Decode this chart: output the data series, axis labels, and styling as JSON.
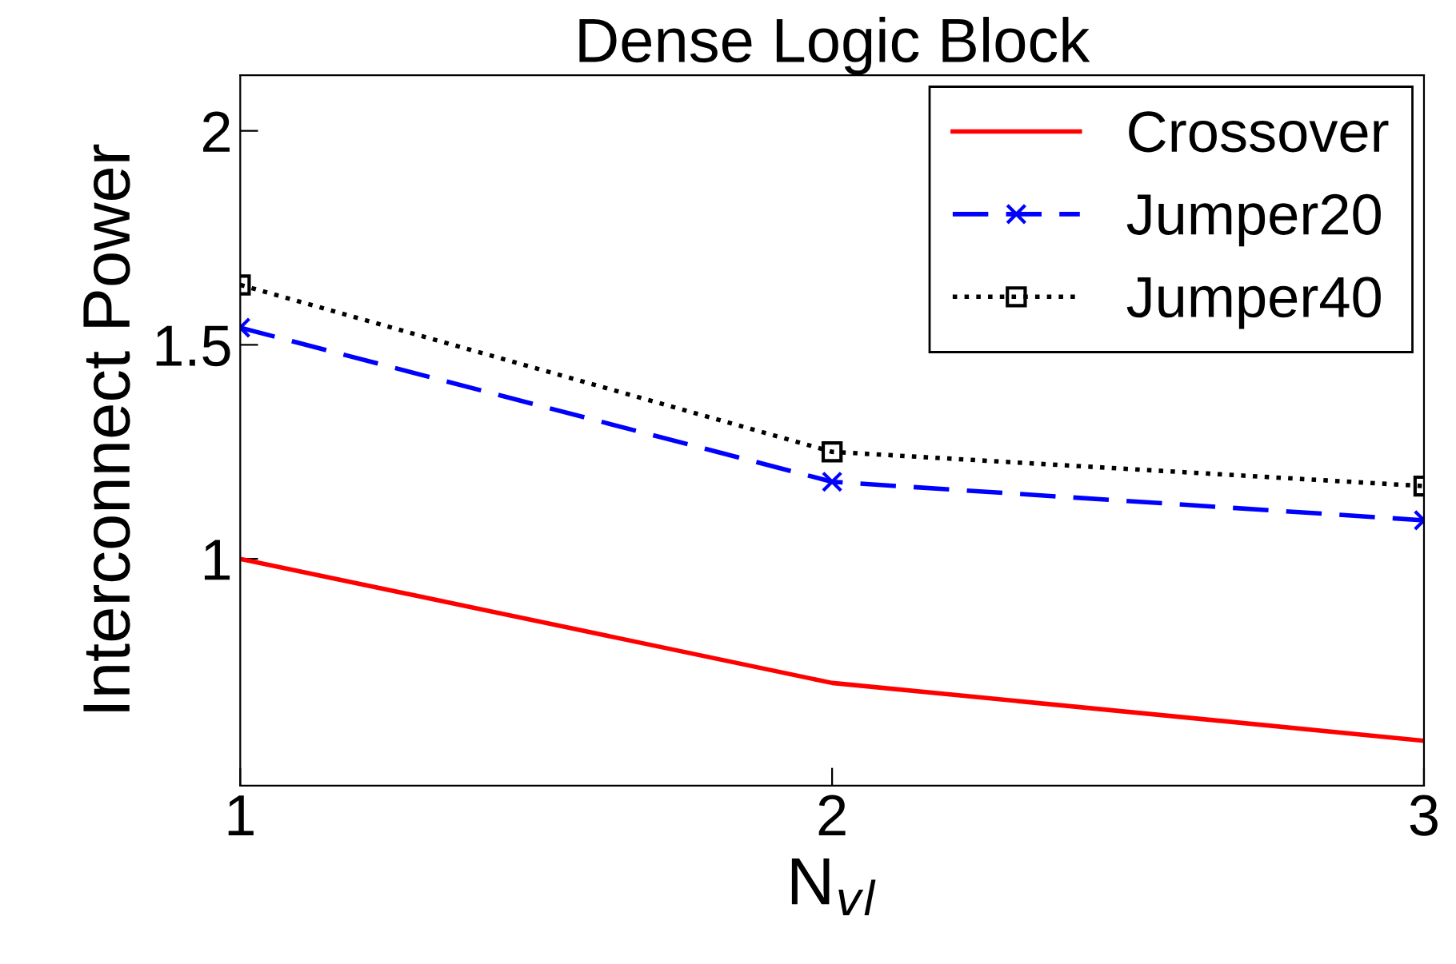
{
  "chart_data": {
    "type": "line",
    "title": "Dense Logic Block",
    "xlabel": "N$_{vl}$",
    "ylabel": "Interconnect Power",
    "x": [
      1,
      2,
      3
    ],
    "series": [
      {
        "name": "Crossover",
        "color": "#ff0000",
        "values": [
          1.0,
          0.71,
          0.575
        ],
        "marker": "none",
        "line_style": "solid"
      },
      {
        "name": "Jumper20",
        "color": "#0000ff",
        "values": [
          1.54,
          1.18,
          1.09
        ],
        "marker": "cross",
        "line_style": "dashed"
      },
      {
        "name": "Jumper40",
        "color": "#000000",
        "values": [
          1.64,
          1.25,
          1.17
        ],
        "marker": "square",
        "line_style": "dotted"
      }
    ],
    "xlim": [
      1,
      3
    ],
    "xticks": [
      1,
      2,
      3
    ],
    "ylim": [
      0.47,
      2.13
    ],
    "yticks": [
      1,
      1.5,
      2
    ],
    "grid": false,
    "legend": "top right"
  }
}
